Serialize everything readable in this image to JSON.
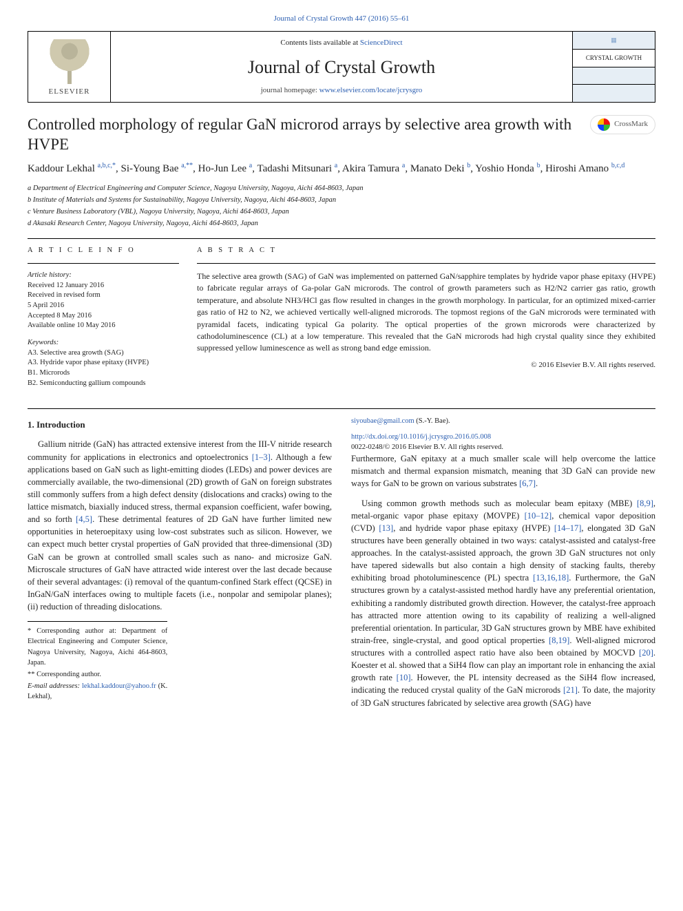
{
  "top_link": {
    "prefix": "",
    "text": "Journal of Crystal Growth 447 (2016) 55–61"
  },
  "header": {
    "publisher": "ELSEVIER",
    "contents_prefix": "Contents lists available at ",
    "contents_link": "ScienceDirect",
    "journal": "Journal of Crystal Growth",
    "homepage_prefix": "journal homepage: ",
    "homepage_link": "www.elsevier.com/locate/jcrysgro",
    "right_label": "CRYSTAL GROWTH"
  },
  "title": "Controlled morphology of regular GaN microrod arrays by selective area growth with HVPE",
  "crossmark": "CrossMark",
  "authors_html": "Kaddour Lekhal <span class='sup'>a,b,c,*</span>, Si-Young Bae <span class='sup'>a,**</span>, Ho-Jun Lee <span class='sup'>a</span>, Tadashi Mitsunari <span class='sup'>a</span>, Akira Tamura <span class='sup'>a</span>, Manato Deki <span class='sup'>b</span>, Yoshio Honda <span class='sup'>b</span>, Hiroshi Amano <span class='sup'>b,c,d</span>",
  "affiliations": [
    "a Department of Electrical Engineering and Computer Science, Nagoya University, Nagoya, Aichi 464-8603, Japan",
    "b Institute of Materials and Systems for Sustainability, Nagoya University, Nagoya, Aichi 464-8603, Japan",
    "c Venture Business Laboratory (VBL), Nagoya University, Nagoya, Aichi 464-8603, Japan",
    "d Akasaki Research Center, Nagoya University, Nagoya, Aichi 464-8603, Japan"
  ],
  "article_info": {
    "heading": "A R T I C L E  I N F O",
    "history_label": "Article history:",
    "history": [
      "Received 12 January 2016",
      "Received in revised form",
      "5 April 2016",
      "Accepted 8 May 2016",
      "Available online 10 May 2016"
    ],
    "keywords_label": "Keywords:",
    "keywords": [
      "A3. Selective area growth (SAG)",
      "A3. Hydride vapor phase epitaxy (HVPE)",
      "B1. Microrods",
      "B2. Semiconducting gallium compounds"
    ]
  },
  "abstract": {
    "heading": "A B S T R A C T",
    "text": "The selective area growth (SAG) of GaN was implemented on patterned GaN/sapphire templates by hydride vapor phase epitaxy (HVPE) to fabricate regular arrays of Ga-polar GaN microrods. The control of growth parameters such as H2/N2 carrier gas ratio, growth temperature, and absolute NH3/HCl gas flow resulted in changes in the growth morphology. In particular, for an optimized mixed-carrier gas ratio of H2 to N2, we achieved vertically well-aligned microrods. The topmost regions of the GaN microrods were terminated with pyramidal facets, indicating typical Ga polarity. The optical properties of the grown microrods were characterized by cathodoluminescence (CL) at a low temperature. This revealed that the GaN microrods had high crystal quality since they exhibited suppressed yellow luminescence as well as strong band edge emission.",
    "copyright": "© 2016 Elsevier B.V. All rights reserved."
  },
  "section1": {
    "heading": "1. Introduction",
    "p1": "Gallium nitride (GaN) has attracted extensive interest from the III-V nitride research community for applications in electronics and optoelectronics [1–3]. Although a few applications based on GaN such as light-emitting diodes (LEDs) and power devices are commercially available, the two-dimensional (2D) growth of GaN on foreign substrates still commonly suffers from a high defect density (dislocations and cracks) owing to the lattice mismatch, biaxially induced stress, thermal expansion coefficient, wafer bowing, and so forth [4,5]. These detrimental features of 2D GaN have further limited new opportunities in heteroepitaxy using low-cost substrates such as silicon. However, we can expect much better crystal properties of GaN provided that three-dimensional (3D) GaN can be grown at controlled small scales such as nano- and microsize GaN. Microscale structures of GaN have attracted wide interest over the last decade because of their several advantages: (i) removal of the quantum-confined Stark effect (QCSE) in InGaN/GaN interfaces owing to multiple facets (i.e., nonpolar and semipolar planes); (ii) reduction of threading dislocations.",
    "p2": "Furthermore, GaN epitaxy at a much smaller scale will help overcome the lattice mismatch and thermal expansion mismatch, meaning that 3D GaN can provide new ways for GaN to be grown on various substrates [6,7].",
    "p3": "Using common growth methods such as molecular beam epitaxy (MBE) [8,9], metal-organic vapor phase epitaxy (MOVPE) [10–12], chemical vapor deposition (CVD) [13], and hydride vapor phase epitaxy (HVPE) [14–17], elongated 3D GaN structures have been generally obtained in two ways: catalyst-assisted and catalyst-free approaches. In the catalyst-assisted approach, the grown 3D GaN structures not only have tapered sidewalls but also contain a high density of stacking faults, thereby exhibiting broad photoluminescence (PL) spectra [13,16,18]. Furthermore, the GaN structures grown by a catalyst-assisted method hardly have any preferential orientation, exhibiting a randomly distributed growth direction. However, the catalyst-free approach has attracted more attention owing to its capability of realizing a well-aligned preferential orientation. In particular, 3D GaN structures grown by MBE have exhibited strain-free, single-crystal, and good optical properties [8,19]. Well-aligned microrod structures with a controlled aspect ratio have also been obtained by MOCVD [20]. Koester et al. showed that a SiH4 flow can play an important role in enhancing the axial growth rate [10]. However, the PL intensity decreased as the SiH4 flow increased, indicating the reduced crystal quality of the GaN microrods [21]. To date, the majority of 3D GaN structures fabricated by selective area growth (SAG) have"
  },
  "footnotes": {
    "corr1": "* Corresponding author at: Department of Electrical Engineering and Computer Science, Nagoya University, Nagoya, Aichi 464-8603, Japan.",
    "corr2": "** Corresponding author.",
    "email_label": "E-mail addresses: ",
    "email1": "lekhal.kaddour@yahoo.fr",
    "email1_who": " (K. Lekhal),",
    "email2": "siyoubae@gmail.com",
    "email2_who": " (S.-Y. Bae)."
  },
  "doi": {
    "link": "http://dx.doi.org/10.1016/j.jcrysgro.2016.05.008",
    "issn": "0022-0248/© 2016 Elsevier B.V. All rights reserved."
  },
  "colors": {
    "link": "#2a5db0",
    "border": "#000000",
    "light_bg": "#e6eef5"
  }
}
